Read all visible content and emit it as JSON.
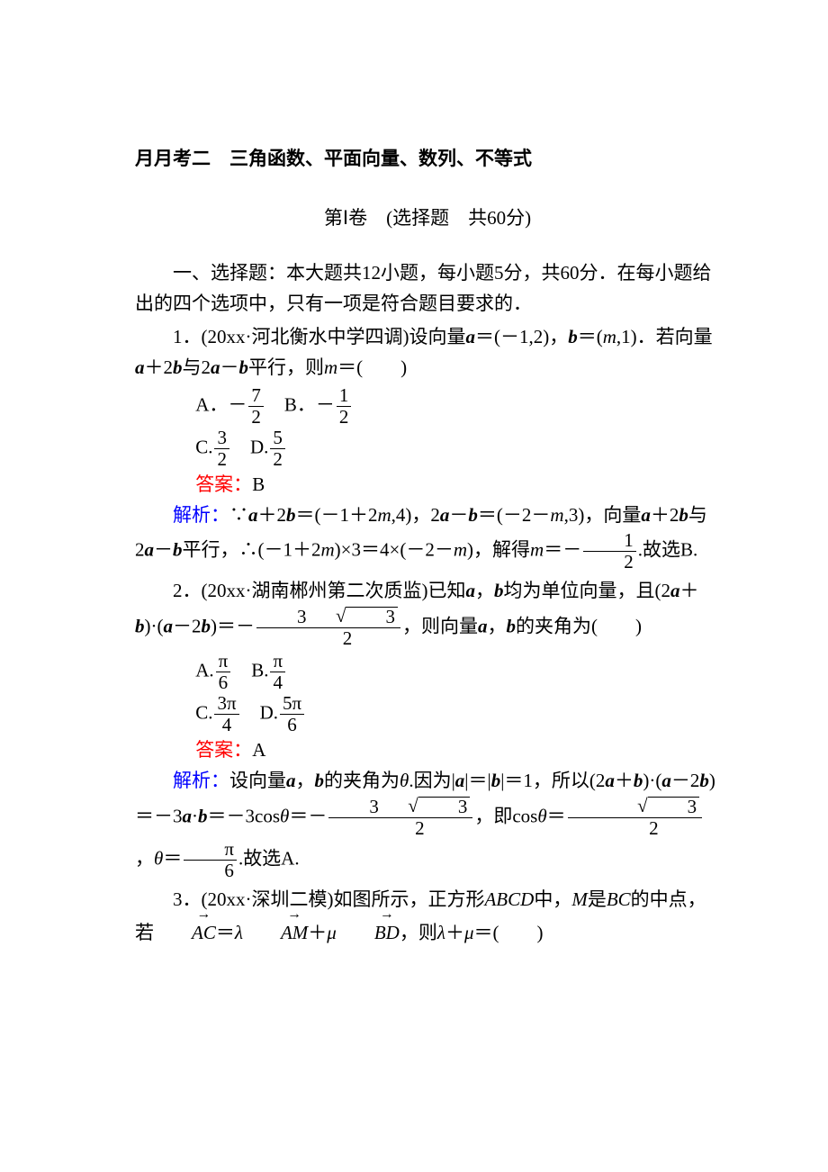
{
  "colors": {
    "text": "#000000",
    "answer_label": "#ff0000",
    "explain_label": "#0000ff",
    "background": "#ffffff"
  },
  "typography": {
    "body_fontsize_pt": 16,
    "line_height": 1.6,
    "font_family": "SimSun"
  },
  "header": {
    "title": "月月考二　三角函数、平面向量、数列、不等式",
    "subtitle_pre": "第Ⅰ卷　(选择题　共",
    "subtitle_score": "60",
    "subtitle_post": "分)"
  },
  "instructions": {
    "line1_pre": "一、选择题：本大题共",
    "count": "12",
    "mid1": "小题，每小题",
    "per": "5",
    "mid2": "分，共",
    "total": "60",
    "line1_post": "分．在每小题给出的四个选项中，只有一项是符合题目要求的．"
  },
  "q1": {
    "num": "1",
    "source": "(20xx·河北衡水中学四调)",
    "stem_a": "设向量",
    "stem_b": "＝(－1,2)，",
    "stem_c": "＝(",
    "stem_d": ",1)．若向量",
    "stem_e": "＋2",
    "stem_f": "与2",
    "stem_g": "－",
    "stem_h": "平行，则",
    "stem_i": "＝(　　)",
    "optA_pre": "A．－",
    "optA_num": "7",
    "optA_den": "2",
    "optB_pre": "B．－",
    "optB_num": "1",
    "optB_den": "2",
    "optC_pre": "C.",
    "optC_num": "3",
    "optC_den": "2",
    "optD_pre": "D.",
    "optD_num": "5",
    "optD_den": "2",
    "answer_label": "答案：",
    "answer_value": "B",
    "explain_label": "解析：",
    "exp_a": "∵",
    "exp_b": "＋2",
    "exp_c": "＝(－1＋2",
    "exp_d": ",4)，2",
    "exp_e": "－",
    "exp_f": "＝(－2－",
    "exp_g": ",3)，向量",
    "exp_h": "＋2",
    "exp_i": "与2",
    "exp_j": "－",
    "exp_k": "平行，∴(－1＋2",
    "exp_l": ")×3＝4×(－2－",
    "exp_m": ")，解得",
    "exp_n": "＝－",
    "exp_num": "1",
    "exp_den": "2",
    "exp_tail": ".故选B."
  },
  "q2": {
    "num": "2",
    "source": "(20xx·湖南郴州第二次质监)",
    "stem_a": "已知",
    "stem_b": "，",
    "stem_c": "均为单位向量，且(2",
    "stem_d": "＋",
    "stem_e": ")·(",
    "stem_f": "－2",
    "stem_g": ")＝－",
    "stem_num_a": "3",
    "stem_surd": "3",
    "stem_den": "2",
    "stem_h": "，则向量",
    "stem_i": "，",
    "stem_j": "的夹角为(　　)",
    "optA_pre": "A.",
    "optA_num": "π",
    "optA_den": "6",
    "optB_pre": "B.",
    "optB_num": "π",
    "optB_den": "4",
    "optC_pre": "C.",
    "optC_num": "3π",
    "optC_den": "4",
    "optD_pre": "D.",
    "optD_num": "5π",
    "optD_den": "6",
    "answer_label": "答案：",
    "answer_value": "A",
    "explain_label": "解析：",
    "exp_a": "设向量",
    "exp_b": "，",
    "exp_c": "的夹角为",
    "exp_d": ".因为|",
    "exp_e": "|＝|",
    "exp_f": "|＝1，所以(2",
    "exp_g": "＋",
    "exp_h": ")·(",
    "exp_i": "－2",
    "exp_j": ")＝－3",
    "exp_k": "·",
    "exp_l": "＝－3cos",
    "exp_m": "＝－",
    "exp_num_a": "3",
    "exp_surd": "3",
    "exp_den_a": "2",
    "exp_n": "，即cos",
    "exp_o": "＝",
    "exp_surd2": "3",
    "exp_den_b": "2",
    "exp_p": "，",
    "exp_q": "＝",
    "exp_num_c": "π",
    "exp_den_c": "6",
    "exp_r": ".故选A."
  },
  "q3": {
    "num": "3",
    "source": "(20xx·深圳二模)",
    "stem_a": "如图所示，正方形",
    "stem_b": "中，",
    "stem_c": "是",
    "stem_d": "的中点，若",
    "stem_e": "＝",
    "stem_f": "＋",
    "stem_g": "，则",
    "stem_h": "＋",
    "stem_i": "＝(　　)",
    "sq": "ABCD",
    "M": "M",
    "BC": "BC",
    "AC": "AC",
    "AM": "AM",
    "BD": "BD",
    "lam": "λ",
    "mu": "μ"
  }
}
